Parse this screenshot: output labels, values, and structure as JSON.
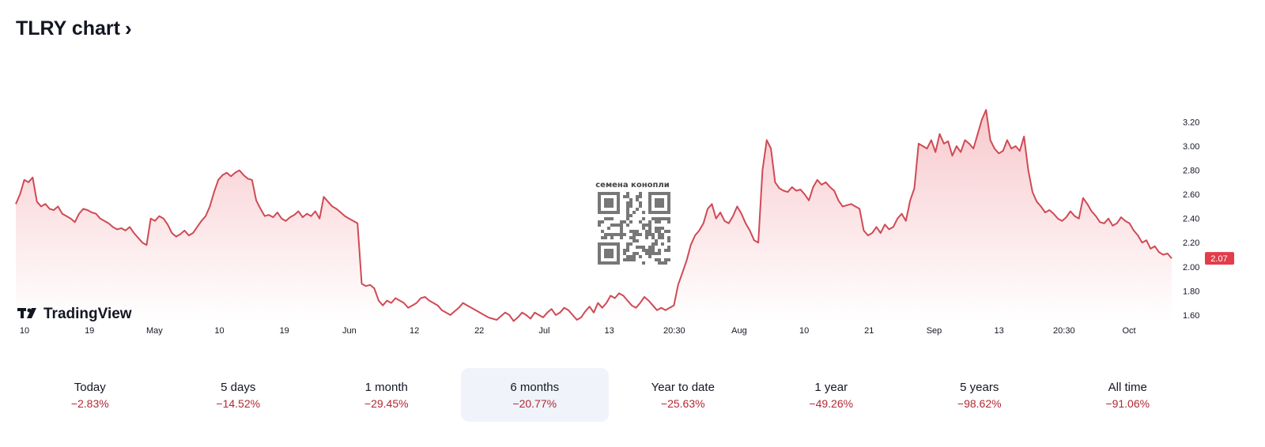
{
  "header": {
    "title": "TLRY chart",
    "chevron": "›"
  },
  "watermark": {
    "text": "семена конопли",
    "qr_icon": "qr-code-icon"
  },
  "logo": {
    "text": "TradingView",
    "icon": "tradingview-logo-icon"
  },
  "colors": {
    "line": "#cf4a55",
    "fill_top": "#f8c9cd",
    "fill_bottom": "#ffffff",
    "price_tag": "#e23d4a",
    "period_value": "#b22833",
    "active_period_bg": "#f0f3fa"
  },
  "current_price": "2.07",
  "periods": [
    {
      "label": "Today",
      "value": "−2.83%"
    },
    {
      "label": "5 days",
      "value": "−14.52%"
    },
    {
      "label": "1 month",
      "value": "−29.45%"
    },
    {
      "label": "6 months",
      "value": "−20.77%",
      "active": true
    },
    {
      "label": "Year to date",
      "value": "−25.63%"
    },
    {
      "label": "1 year",
      "value": "−49.26%"
    },
    {
      "label": "5 years",
      "value": "−98.62%"
    },
    {
      "label": "All time",
      "value": "−91.06%"
    }
  ],
  "chart_data": {
    "type": "area",
    "title": "TLRY chart",
    "xlabel": "",
    "ylabel": "",
    "ylim": [
      1.56,
      3.36
    ],
    "y_ticks": [
      "3.20",
      "3.00",
      "2.80",
      "2.60",
      "2.40",
      "2.20",
      "2.00",
      "1.80",
      "1.60"
    ],
    "x_ticks": [
      "10",
      "19",
      "May",
      "10",
      "19",
      "Jun",
      "12",
      "22",
      "Jul",
      "13",
      "20:30",
      "Aug",
      "10",
      "21",
      "Sep",
      "13",
      "20:30",
      "Oct"
    ],
    "grid": false,
    "legend": "none",
    "series": [
      {
        "values": [
          2.52,
          2.6,
          2.72,
          2.7,
          2.74,
          2.54,
          2.5,
          2.52,
          2.48,
          2.47,
          2.5,
          2.44,
          2.42,
          2.4,
          2.37,
          2.44,
          2.48,
          2.47,
          2.45,
          2.44,
          2.4,
          2.38,
          2.36,
          2.33,
          2.31,
          2.32,
          2.3,
          2.33,
          2.28,
          2.24,
          2.2,
          2.18,
          2.4,
          2.38,
          2.42,
          2.4,
          2.35,
          2.28,
          2.25,
          2.27,
          2.3,
          2.26,
          2.28,
          2.33,
          2.38,
          2.42,
          2.5,
          2.62,
          2.72,
          2.76,
          2.78,
          2.75,
          2.78,
          2.8,
          2.76,
          2.73,
          2.72,
          2.55,
          2.48,
          2.42,
          2.43,
          2.41,
          2.45,
          2.4,
          2.38,
          2.41,
          2.43,
          2.46,
          2.41,
          2.44,
          2.42,
          2.46,
          2.4,
          2.58,
          2.54,
          2.5,
          2.48,
          2.45,
          2.42,
          2.4,
          2.38,
          2.36,
          1.86,
          1.84,
          1.85,
          1.82,
          1.72,
          1.68,
          1.72,
          1.7,
          1.74,
          1.72,
          1.7,
          1.66,
          1.68,
          1.7,
          1.74,
          1.75,
          1.72,
          1.7,
          1.68,
          1.64,
          1.62,
          1.6,
          1.63,
          1.66,
          1.7,
          1.68,
          1.66,
          1.64,
          1.62,
          1.6,
          1.58,
          1.57,
          1.56,
          1.59,
          1.62,
          1.6,
          1.55,
          1.58,
          1.62,
          1.6,
          1.57,
          1.62,
          1.6,
          1.58,
          1.62,
          1.65,
          1.6,
          1.62,
          1.66,
          1.64,
          1.6,
          1.56,
          1.58,
          1.63,
          1.67,
          1.62,
          1.7,
          1.66,
          1.7,
          1.76,
          1.74,
          1.78,
          1.76,
          1.72,
          1.68,
          1.66,
          1.7,
          1.75,
          1.72,
          1.68,
          1.64,
          1.66,
          1.64,
          1.66,
          1.68,
          1.85,
          1.95,
          2.05,
          2.18,
          2.26,
          2.3,
          2.36,
          2.48,
          2.52,
          2.4,
          2.45,
          2.38,
          2.36,
          2.42,
          2.5,
          2.44,
          2.36,
          2.3,
          2.22,
          2.2,
          2.8,
          3.05,
          2.98,
          2.7,
          2.65,
          2.63,
          2.62,
          2.66,
          2.63,
          2.64,
          2.6,
          2.55,
          2.66,
          2.72,
          2.68,
          2.7,
          2.66,
          2.63,
          2.55,
          2.5,
          2.51,
          2.52,
          2.5,
          2.48,
          2.3,
          2.26,
          2.28,
          2.33,
          2.28,
          2.35,
          2.31,
          2.33,
          2.4,
          2.44,
          2.38,
          2.55,
          2.65,
          3.02,
          3.0,
          2.98,
          3.05,
          2.95,
          3.1,
          3.02,
          3.04,
          2.92,
          3.0,
          2.95,
          3.05,
          3.02,
          2.98,
          3.1,
          3.22,
          3.3,
          3.05,
          2.98,
          2.94,
          2.96,
          3.05,
          2.98,
          3.0,
          2.96,
          3.08,
          2.8,
          2.62,
          2.54,
          2.5,
          2.45,
          2.47,
          2.44,
          2.4,
          2.38,
          2.41,
          2.46,
          2.42,
          2.4,
          2.57,
          2.52,
          2.46,
          2.42,
          2.37,
          2.36,
          2.4,
          2.34,
          2.36,
          2.41,
          2.38,
          2.36,
          2.3,
          2.26,
          2.2,
          2.22,
          2.15,
          2.17,
          2.12,
          2.1,
          2.11,
          2.07
        ]
      }
    ],
    "last_value": 2.07
  }
}
